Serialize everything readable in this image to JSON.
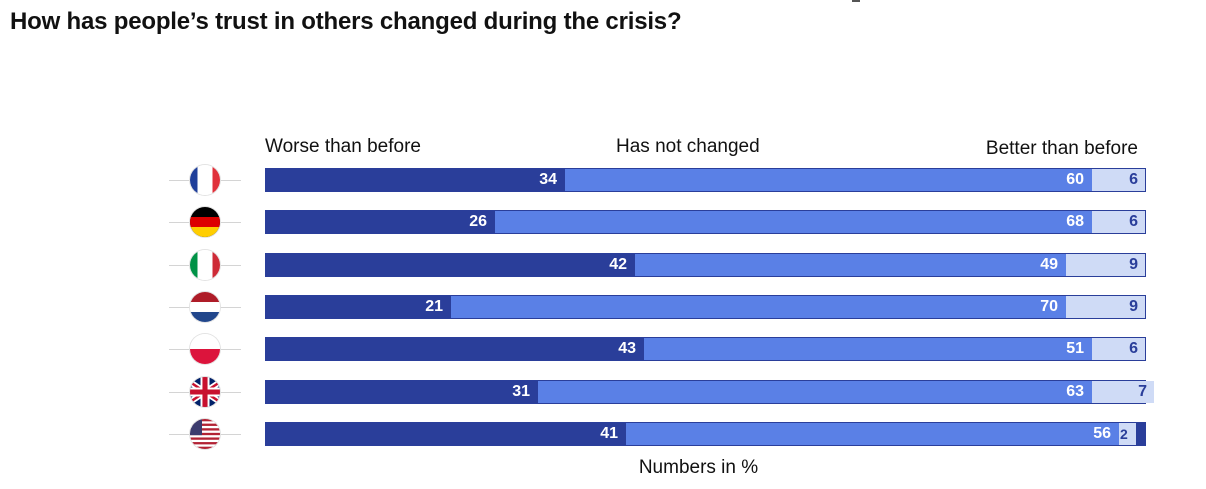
{
  "title": "How has people’s trust in others changed during the crisis?",
  "footnote": "Numbers in %",
  "colors": {
    "worse": "#2a3e9a",
    "unchanged": "#5a80e6",
    "better": "#cfdbf6",
    "dark_text": "#2a3e9a",
    "light_text": "#ffffff"
  },
  "chart_data": {
    "type": "bar",
    "orientation": "horizontal",
    "stacked": true,
    "unit": "%",
    "title": "How has people’s trust in others changed during the crisis?",
    "xlim": [
      0,
      100
    ],
    "grid": false,
    "legend_placement": "top",
    "categories": [
      "france-flag-icon",
      "germany-flag-icon",
      "italy-flag-icon",
      "netherlands-flag-icon",
      "poland-flag-icon",
      "uk-flag-icon",
      "usa-flag-icon"
    ],
    "series": [
      {
        "name": "Worse than before",
        "values": [
          34,
          26,
          42,
          21,
          43,
          31,
          41
        ]
      },
      {
        "name": "Has not changed",
        "values": [
          60,
          68,
          49,
          70,
          51,
          63,
          56
        ]
      },
      {
        "name": "Better than before",
        "values": [
          6,
          6,
          9,
          9,
          6,
          7,
          2
        ]
      }
    ],
    "note": "Numbers in %"
  }
}
